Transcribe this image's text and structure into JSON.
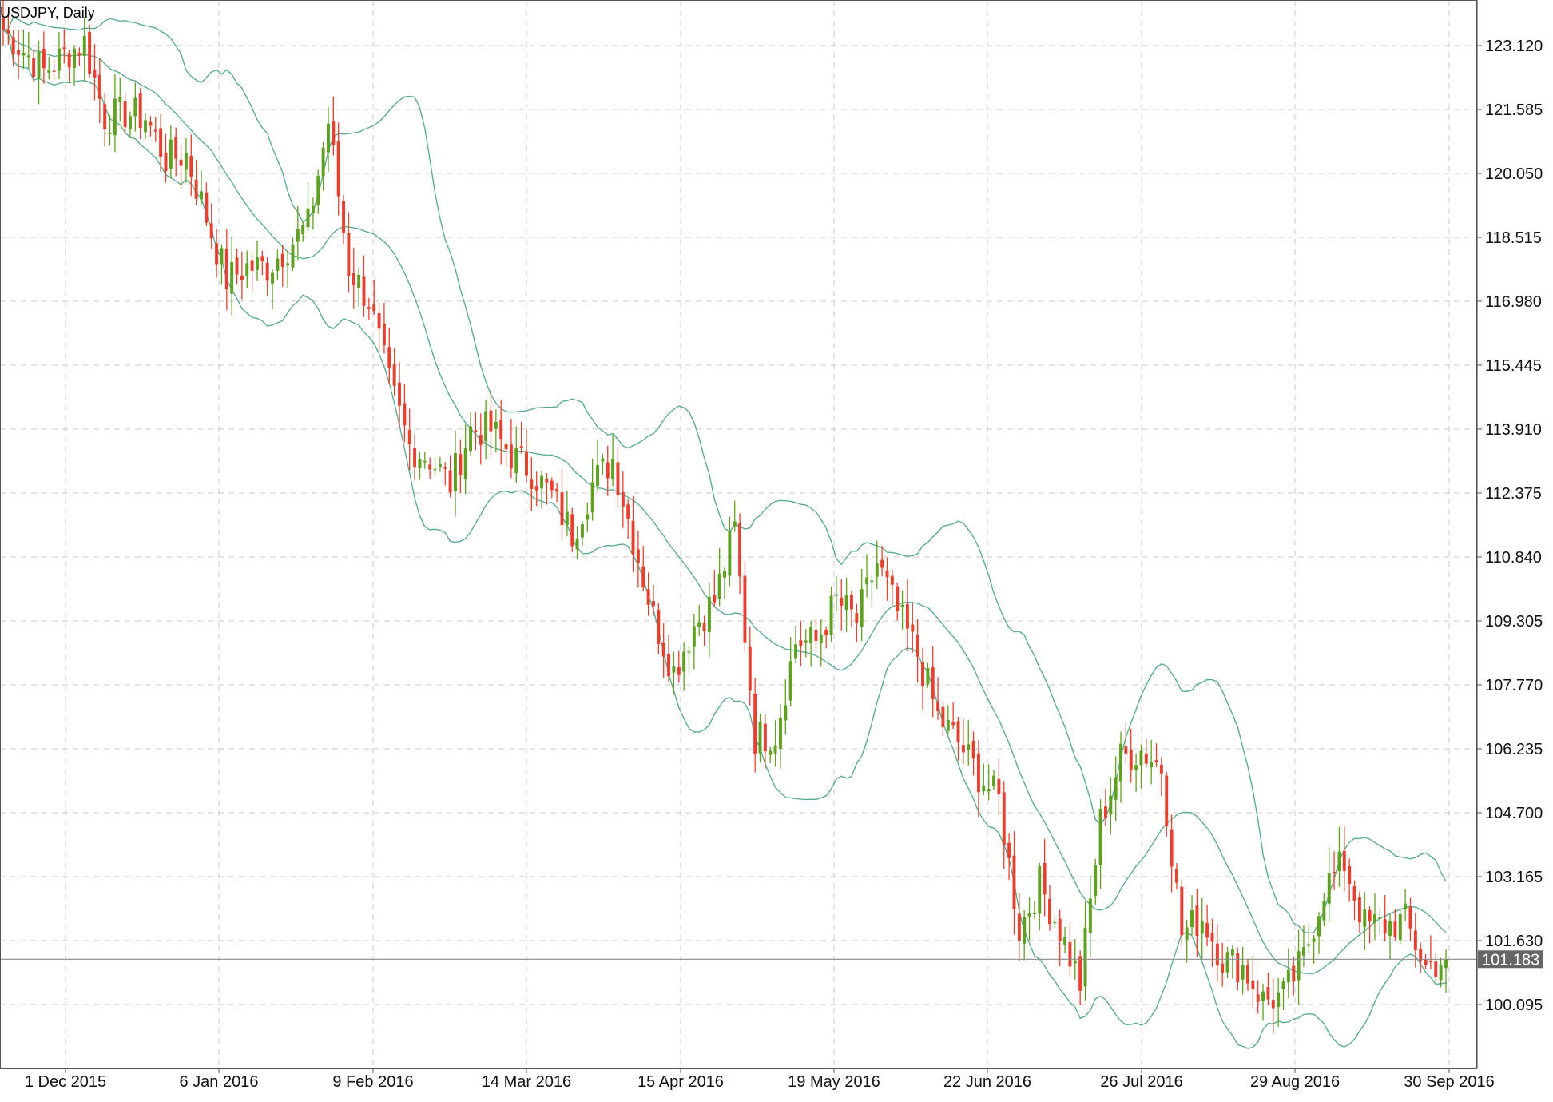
{
  "chart_data": {
    "type": "candlestick",
    "title": "USDJPY, Daily",
    "indicator": "Bollinger Bands",
    "y_ticks": [
      "123.120",
      "121.585",
      "120.050",
      "118.515",
      "116.980",
      "115.445",
      "113.910",
      "112.375",
      "110.840",
      "109.305",
      "107.770",
      "106.235",
      "104.700",
      "103.165",
      "101.630",
      "100.095"
    ],
    "x_ticks": [
      "1 Dec 2015",
      "6 Jan 2016",
      "9 Feb 2016",
      "14 Mar 2016",
      "15 Apr 2016",
      "19 May 2016",
      "22 Jun 2016",
      "26 Jul 2016",
      "29 Aug 2016",
      "30 Sep 2016"
    ],
    "current_price": "101.183",
    "ylim": [
      98.55,
      124.1
    ],
    "colors": {
      "up": "#5ea01f",
      "down": "#e8402e",
      "band": "#4aa482",
      "grid": "#c8c8c8",
      "axis": "#555555",
      "price_line": "#8a8a8a",
      "price_label_bg": "#666666"
    },
    "grid": true,
    "close_anchors": [
      [
        0,
        123.5
      ],
      [
        4,
        123.0
      ],
      [
        8,
        122.5
      ],
      [
        12,
        122.9
      ],
      [
        16,
        123.2
      ],
      [
        20,
        121.4
      ],
      [
        24,
        121.5
      ],
      [
        28,
        121.4
      ],
      [
        32,
        120.4
      ],
      [
        36,
        120.5
      ],
      [
        40,
        119.0
      ],
      [
        44,
        117.5
      ],
      [
        48,
        117.8
      ],
      [
        52,
        117.8
      ],
      [
        56,
        118.3
      ],
      [
        60,
        118.8
      ],
      [
        64,
        121.3
      ],
      [
        68,
        117.8
      ],
      [
        72,
        117.0
      ],
      [
        76,
        115.0
      ],
      [
        80,
        113.5
      ],
      [
        84,
        113.2
      ],
      [
        88,
        112.6
      ],
      [
        92,
        113.9
      ],
      [
        96,
        113.9
      ],
      [
        100,
        113.3
      ],
      [
        104,
        112.9
      ],
      [
        108,
        112.3
      ],
      [
        112,
        111.4
      ],
      [
        116,
        112.6
      ],
      [
        120,
        113.2
      ],
      [
        124,
        111.3
      ],
      [
        128,
        109.4
      ],
      [
        132,
        108.1
      ],
      [
        136,
        109.2
      ],
      [
        140,
        109.8
      ],
      [
        144,
        111.5
      ],
      [
        148,
        106.5
      ],
      [
        152,
        106.6
      ],
      [
        156,
        108.8
      ],
      [
        160,
        108.8
      ],
      [
        164,
        109.8
      ],
      [
        168,
        109.3
      ],
      [
        172,
        110.7
      ],
      [
        176,
        109.5
      ],
      [
        180,
        108.5
      ],
      [
        184,
        107.0
      ],
      [
        188,
        106.4
      ],
      [
        192,
        105.6
      ],
      [
        196,
        105.0
      ],
      [
        200,
        101.9
      ],
      [
        204,
        103.0
      ],
      [
        208,
        101.9
      ],
      [
        212,
        100.6
      ],
      [
        216,
        104.5
      ],
      [
        220,
        106.0
      ],
      [
        224,
        106.2
      ],
      [
        228,
        105.8
      ],
      [
        232,
        101.8
      ],
      [
        236,
        102.2
      ],
      [
        240,
        101.2
      ],
      [
        244,
        101.0
      ],
      [
        248,
        100.2
      ],
      [
        252,
        100.3
      ],
      [
        256,
        101.2
      ],
      [
        260,
        102.9
      ],
      [
        264,
        103.5
      ],
      [
        268,
        102.0
      ],
      [
        272,
        102.0
      ],
      [
        276,
        102.1
      ],
      [
        280,
        101.0
      ],
      [
        284,
        101.2
      ]
    ]
  }
}
